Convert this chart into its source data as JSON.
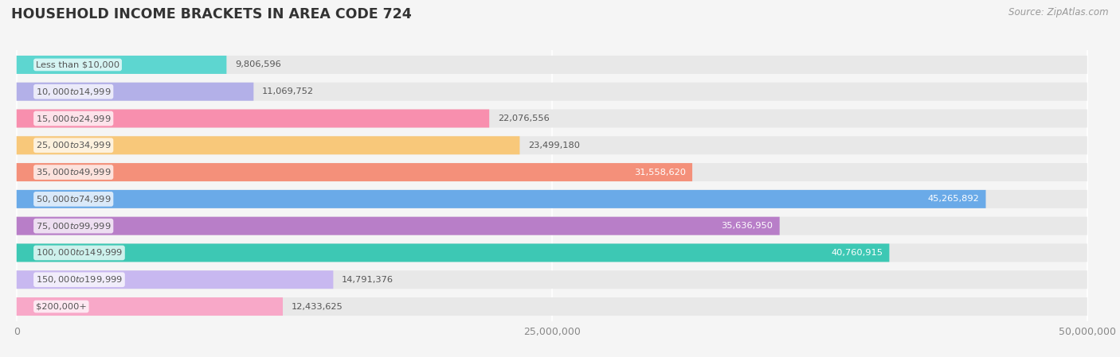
{
  "title": "HOUSEHOLD INCOME BRACKETS IN AREA CODE 724",
  "source": "Source: ZipAtlas.com",
  "categories": [
    "Less than $10,000",
    "$10,000 to $14,999",
    "$15,000 to $24,999",
    "$25,000 to $34,999",
    "$35,000 to $49,999",
    "$50,000 to $74,999",
    "$75,000 to $99,999",
    "$100,000 to $149,999",
    "$150,000 to $199,999",
    "$200,000+"
  ],
  "values": [
    9806596,
    11069752,
    22076556,
    23499180,
    31558620,
    45265892,
    35636950,
    40760915,
    14791376,
    12433625
  ],
  "bar_colors": [
    "#5dd6d0",
    "#b3b0e8",
    "#f88fae",
    "#f8c87a",
    "#f4907a",
    "#6aaae8",
    "#b87ec8",
    "#3dc8b4",
    "#c8b8f0",
    "#f8a8c8"
  ],
  "bg_color": "#f5f5f5",
  "bar_bg_color": "#e8e8e8",
  "title_color": "#333333",
  "source_color": "#999999",
  "label_color": "#555555",
  "xmax": 50000000,
  "xticks": [
    0,
    25000000,
    50000000
  ],
  "xtick_labels": [
    "0",
    "25,000,000",
    "50,000,000"
  ],
  "inside_value_threshold": 28000000
}
